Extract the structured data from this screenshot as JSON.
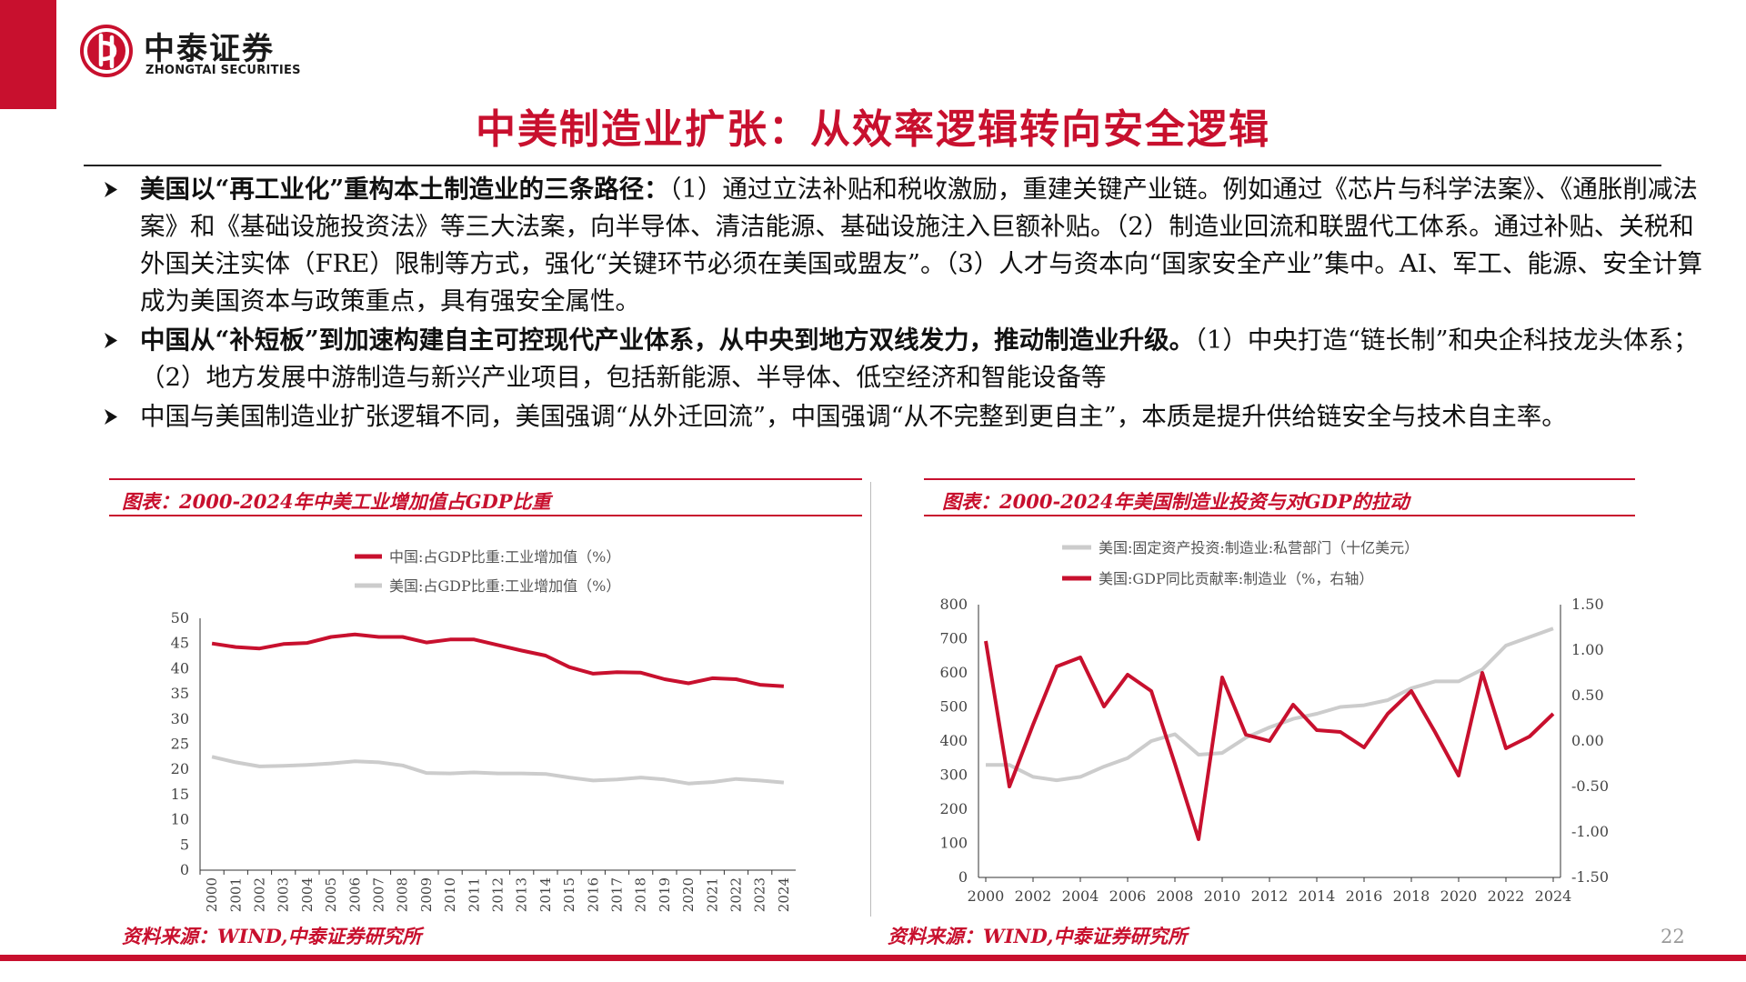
{
  "brand": {
    "name_cn": "中泰证券",
    "name_en": "ZHONGTAI SECURITIES"
  },
  "title": "中美制造业扩张：从效率逻辑转向安全逻辑",
  "bullets": [
    {
      "bold": "美国以“再工业化”重构本土制造业的三条路径：",
      "text": "（1）通过立法补贴和税收激励，重建关键产业链。例如通过《芯片与科学法案》、《通胀削减法案》和《基础设施投资法》等三大法案，向半导体、清洁能源、基础设施注入巨额补贴。（2）制造业回流和联盟代工体系。通过补贴、关税和外国关注实体（FRE）限制等方式，强化“关键环节必须在美国或盟友”。（3）人才与资本向“国家安全产业”集中。AI、军工、能源、安全计算成为美国资本与政策重点，具有强安全属性。"
    },
    {
      "bold": "中国从“补短板”到加速构建自主可控现代产业体系，从中央到地方双线发力，推动制造业升级。",
      "text": "（1）中央打造“链长制”和央企科技龙头体系；（2）地方发展中游制造与新兴产业项目，包括新能源、半导体、低空经济和智能设备等"
    },
    {
      "bold": "",
      "text": "中国与美国制造业扩张逻辑不同，美国强调“从外迁回流”，中国强调“从不完整到更自主”，本质是提升供给链安全与技术自主率。"
    }
  ],
  "left_panel": {
    "title": "图表：2000-2024年中美工业增加值占GDP比重",
    "source": "资料来源：WIND,中泰证券研究所"
  },
  "right_panel": {
    "title": "图表：2000-2024年美国制造业投资与对GDP的拉动",
    "source": "资料来源：WIND,中泰证券研究所"
  },
  "page_number": "22",
  "colors": {
    "accent": "#c8102e",
    "gray_series": "#cccccc"
  },
  "chart_data": [
    {
      "type": "line",
      "x": [
        2000,
        2001,
        2002,
        2003,
        2004,
        2005,
        2006,
        2007,
        2008,
        2009,
        2010,
        2011,
        2012,
        2013,
        2014,
        2015,
        2016,
        2017,
        2018,
        2019,
        2020,
        2021,
        2022,
        2023,
        2024
      ],
      "ylim": [
        0,
        50
      ],
      "yticks": [
        0,
        5,
        10,
        15,
        20,
        25,
        30,
        35,
        40,
        45,
        50
      ],
      "legend_position": "top",
      "series": [
        {
          "name": "中国:占GDP比重:工业增加值（%）",
          "color": "#c8102e",
          "values": [
            45.0,
            44.3,
            44.0,
            44.9,
            45.1,
            46.3,
            46.8,
            46.3,
            46.3,
            45.2,
            45.8,
            45.8,
            44.7,
            43.6,
            42.6,
            40.3,
            39.0,
            39.3,
            39.2,
            37.9,
            37.1,
            38.1,
            37.9,
            36.8,
            36.5
          ]
        },
        {
          "name": "美国:占GDP比重:工业增加值（%）",
          "color": "#cccccc",
          "values": [
            22.5,
            21.4,
            20.6,
            20.7,
            20.9,
            21.2,
            21.6,
            21.4,
            20.8,
            19.3,
            19.2,
            19.4,
            19.2,
            19.2,
            19.1,
            18.4,
            17.8,
            18.0,
            18.4,
            18.0,
            17.2,
            17.5,
            18.1,
            17.8,
            17.4
          ]
        }
      ]
    },
    {
      "type": "line",
      "x": [
        2000,
        2001,
        2002,
        2003,
        2004,
        2005,
        2006,
        2007,
        2008,
        2009,
        2010,
        2011,
        2012,
        2013,
        2014,
        2015,
        2016,
        2017,
        2018,
        2019,
        2020,
        2021,
        2022,
        2023,
        2024
      ],
      "xticks": [
        2000,
        2002,
        2004,
        2006,
        2008,
        2010,
        2012,
        2014,
        2016,
        2018,
        2020,
        2022,
        2024
      ],
      "ylim": [
        0,
        800
      ],
      "yticks": [
        0,
        100,
        200,
        300,
        400,
        500,
        600,
        700,
        800
      ],
      "y2lim": [
        -1.5,
        1.5
      ],
      "y2ticks": [
        "1.50",
        "1.00",
        "0.50",
        "0.00",
        "-0.50",
        "-1.00",
        "-1.50"
      ],
      "legend_position": "top",
      "series": [
        {
          "name": "美国:固定资产投资:制造业:私营部门（十亿美元）",
          "color": "#cccccc",
          "axis": "left",
          "values": [
            330,
            330,
            295,
            285,
            295,
            325,
            350,
            400,
            420,
            360,
            365,
            410,
            440,
            465,
            480,
            500,
            505,
            520,
            555,
            575,
            575,
            610,
            680,
            705,
            730
          ]
        },
        {
          "name": "美国:GDP同比贡献率:制造业（%，右轴）",
          "color": "#c8102e",
          "axis": "right",
          "values": [
            1.1,
            -0.5,
            0.18,
            0.82,
            0.92,
            0.38,
            0.73,
            0.55,
            -0.25,
            -1.08,
            0.7,
            0.07,
            0.0,
            0.4,
            0.12,
            0.1,
            -0.07,
            0.3,
            0.55,
            0.1,
            -0.38,
            0.75,
            -0.08,
            0.05,
            0.3
          ]
        }
      ]
    }
  ]
}
